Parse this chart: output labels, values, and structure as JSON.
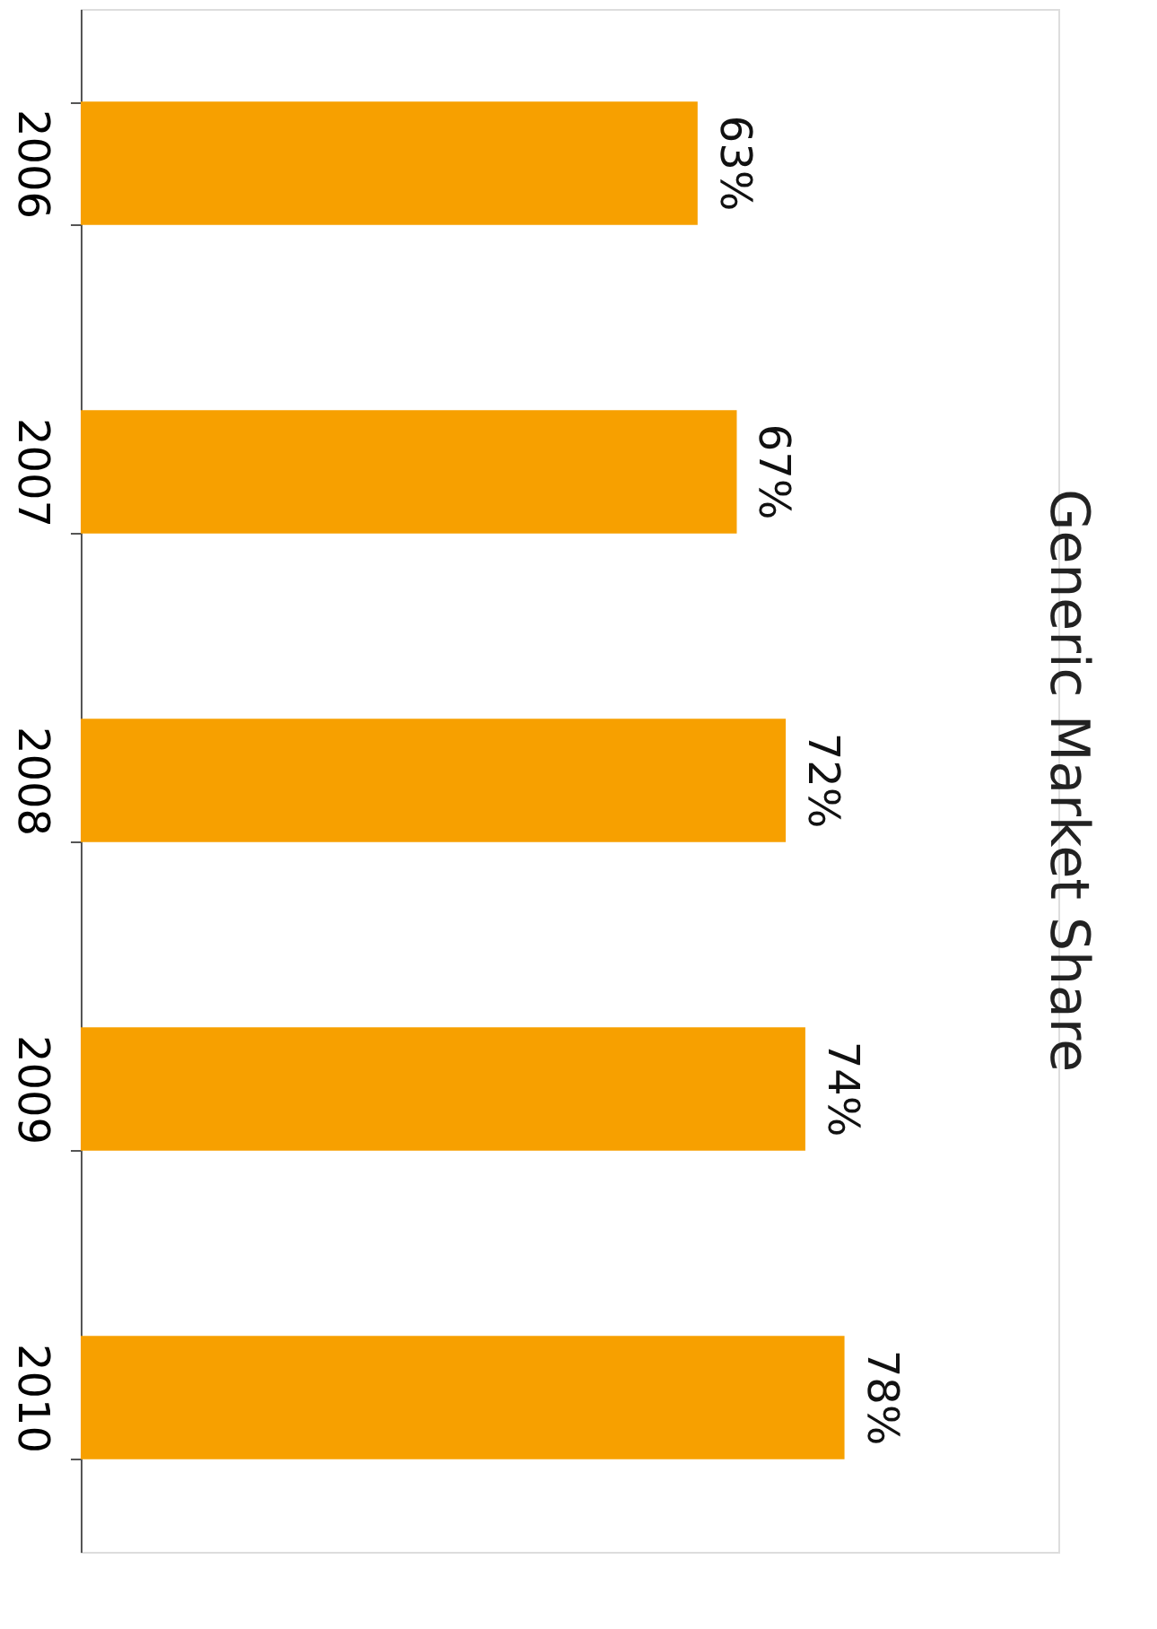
{
  "chart_data": {
    "type": "bar",
    "orientation": "horizontal",
    "title": "Generic Market Share",
    "categories": [
      "2006",
      "2007",
      "2008",
      "2009",
      "2010"
    ],
    "values": [
      63,
      67,
      72,
      74,
      78
    ],
    "value_labels": [
      "63%",
      "67%",
      "72%",
      "74%",
      "78%"
    ],
    "color": "#f7a000"
  }
}
